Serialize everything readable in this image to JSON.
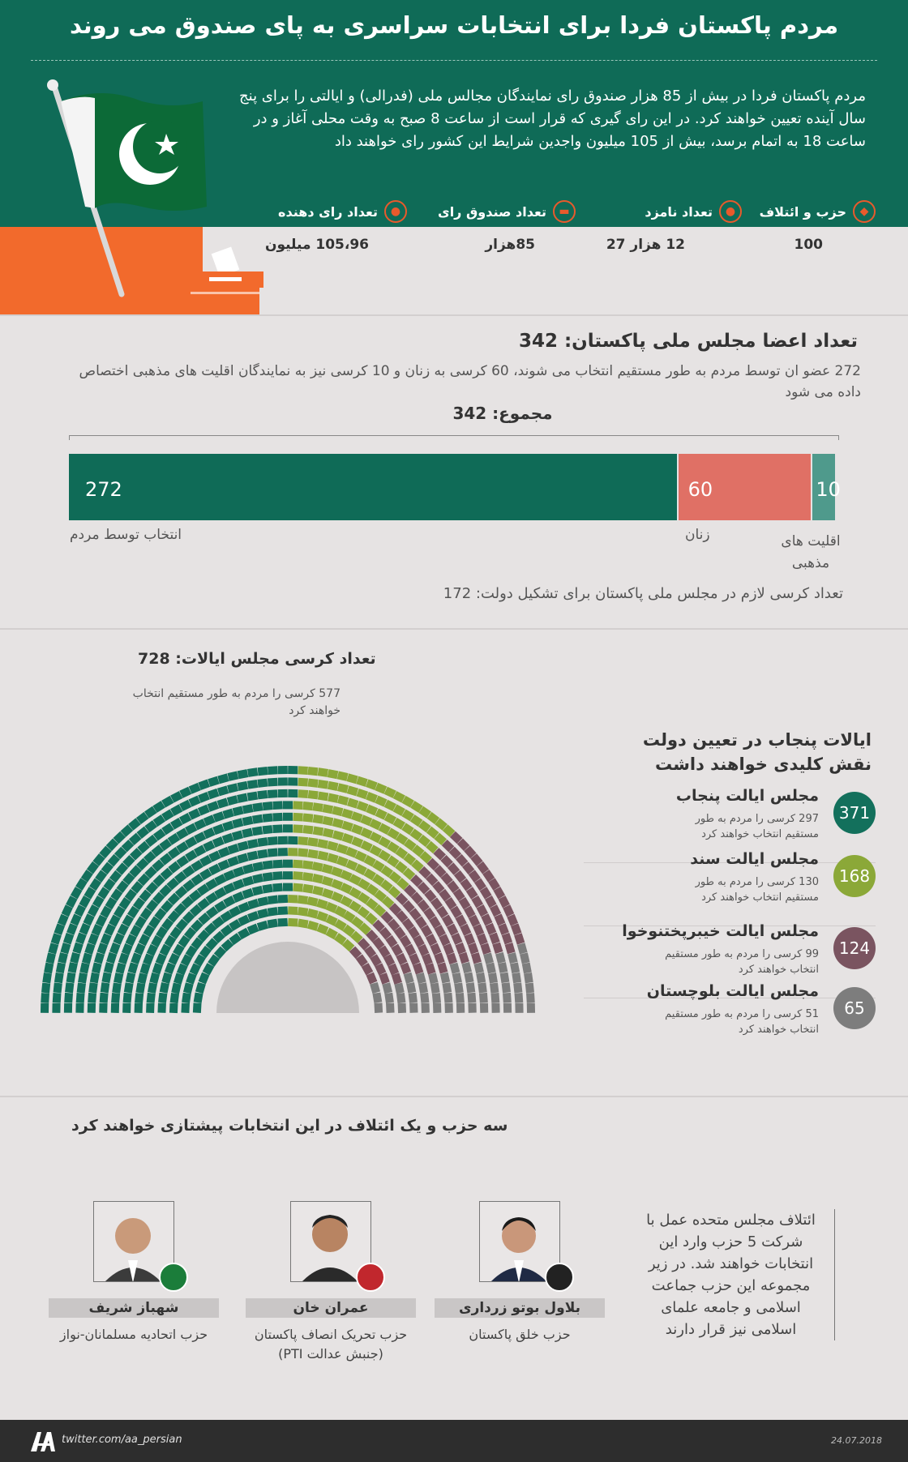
{
  "header": {
    "title": "مردم پاکستان فردا برای انتخابات سراسری به پای صندوق می روند",
    "intro": "مردم پاکستان فردا در بیش از 85 هزار صندوق رای نمایندگان مجالس ملی (فدرالی) و ایالتی را برای پنج سال آینده  تعیین خواهند کرد. در این رای گیری که قرار است از ساعت 8 صبح به وقت محلی آغاز و در ساعت 18 به اتمام برسد، بیش از 105 میلیون واجدین شرایط این کشور رای خواهند داد"
  },
  "stats": [
    {
      "label": "حزب و ائتلاف",
      "value": "100",
      "icon": "pakistan-map-icon"
    },
    {
      "label": "تعداد نامزد",
      "value": "12 هزار 27",
      "icon": "person-icon"
    },
    {
      "label": "تعداد صندوق رای",
      "value": "85هزار",
      "icon": "ballot-box-icon"
    },
    {
      "label": "تعداد رای دهنده",
      "value": "105،96 میلیون",
      "icon": "people-icon"
    }
  ],
  "national_assembly": {
    "title": "تعداد اعضا مجلس ملی پاکستان: 342",
    "desc": "272 عضو ان توسط مردم به طور مستقیم انتخاب می شوند، 60 کرسی به زنان و 10 کرسی نیز به نمایندگان اقلیت های مذهبی اختصاص داده می شود",
    "total": "مجموع: 342",
    "segments": [
      {
        "value": 272,
        "label": "272",
        "caption": "انتخاب توسط مردم",
        "color": "#0f6b57"
      },
      {
        "value": 60,
        "label": "60",
        "caption": "زنان",
        "color": "#e07065"
      },
      {
        "value": 10,
        "label": "10",
        "caption": "اقلیت های مذهبی",
        "color": "#4f9a8c"
      }
    ],
    "note": "تعداد کرسی لازم در مجلس ملی پاکستان برای تشکیل دولت: 172"
  },
  "provincial": {
    "title": "تعداد کرسی مجلس ایالات: 728",
    "sub": "577 کرسی را مردم به طور مستقیم انتخاب خواهند کرد",
    "key_title": "ایالات پنجاب در تعیین دولت نقش کلیدی خواهند داشت",
    "provinces": [
      {
        "name": "مجلس ایالت پنجاب",
        "seats": "371",
        "desc": "297 کرسی را مردم به طور مستقیم انتخاب خواهند کرد",
        "color": "#13705c",
        "count": 371
      },
      {
        "name": "مجلس ایالت سند",
        "seats": "168",
        "desc": "130  کرسی را مردم به طور مستقیم انتخاب خواهند کرد",
        "color": "#8ba838",
        "count": 168
      },
      {
        "name": "مجلس ایالت خیبرپختنوخوا",
        "seats": "124",
        "desc": "99 کرسی را مردم به طور مستقیم انتخاب خواهند کرد",
        "color": "#7a5460",
        "count": 124
      },
      {
        "name": "مجلس ایالت بلوچستان",
        "seats": "65",
        "desc": "51 کرسی را مردم به طور مستقیم انتخاب خواهند کرد",
        "color": "#7d7d7d",
        "count": 65
      }
    ]
  },
  "parties": {
    "title": "سه حزب و یک ائتلاف در این انتخابات پیشتازی خواهند کرد",
    "leaders": [
      {
        "name": "شهباز شریف",
        "party": "حزب اتحادیه مسلمانان-نواز",
        "badge_color": "#1b7d3a"
      },
      {
        "name": "عمران خان",
        "party": "حزب تحریک انصاف پاکستان (جنبش عدالت PTI)",
        "badge_color": "#c1272d"
      },
      {
        "name": "بلاول بوتو زرداری",
        "party": "حزب خلق پاکستان",
        "badge_color": "#222222"
      }
    ],
    "alliance": "ائتلاف مجلس متحده عمل با شرکت 5 حزب وارد این انتخابات خواهند شد. در زیر مجموعه این حزب جماعت اسلامی و جامعه علمای اسلامی نیز قرار دارند"
  },
  "footer": {
    "handle": "twitter.com/aa_persian",
    "date": "24.07.2018",
    "logo": "aa-logo-icon"
  }
}
